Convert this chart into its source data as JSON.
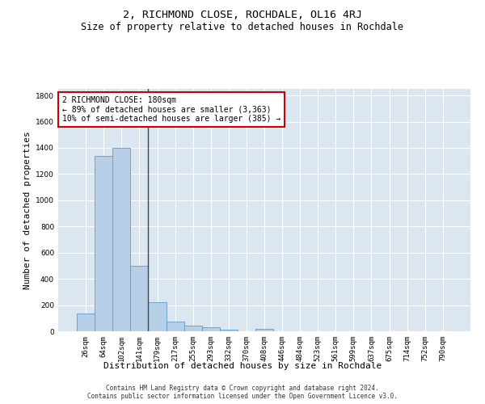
{
  "title": "2, RICHMOND CLOSE, ROCHDALE, OL16 4RJ",
  "subtitle": "Size of property relative to detached houses in Rochdale",
  "xlabel": "Distribution of detached houses by size in Rochdale",
  "ylabel": "Number of detached properties",
  "bar_labels": [
    "26sqm",
    "64sqm",
    "102sqm",
    "141sqm",
    "179sqm",
    "217sqm",
    "255sqm",
    "293sqm",
    "332sqm",
    "370sqm",
    "408sqm",
    "446sqm",
    "484sqm",
    "523sqm",
    "561sqm",
    "599sqm",
    "637sqm",
    "675sqm",
    "714sqm",
    "752sqm",
    "790sqm"
  ],
  "bar_values": [
    135,
    1340,
    1400,
    500,
    225,
    75,
    45,
    28,
    15,
    0,
    20,
    0,
    0,
    0,
    0,
    0,
    0,
    0,
    0,
    0,
    0
  ],
  "bar_color": "#b8cfe8",
  "bar_edge_color": "#5b9bd5",
  "vline_color": "#444444",
  "annotation_text": "2 RICHMOND CLOSE: 180sqm\n← 89% of detached houses are smaller (3,363)\n10% of semi-detached houses are larger (385) →",
  "annotation_box_color": "#ffffff",
  "annotation_box_edge": "#cc0000",
  "ylim": [
    0,
    1850
  ],
  "yticks": [
    0,
    200,
    400,
    600,
    800,
    1000,
    1200,
    1400,
    1600,
    1800
  ],
  "background_color": "#ffffff",
  "plot_bg_color": "#dce6f0",
  "grid_color": "#ffffff",
  "footer_line1": "Contains HM Land Registry data © Crown copyright and database right 2024.",
  "footer_line2": "Contains public sector information licensed under the Open Government Licence v3.0.",
  "title_fontsize": 9.5,
  "subtitle_fontsize": 8.5,
  "tick_fontsize": 6.5,
  "ylabel_fontsize": 8,
  "xlabel_fontsize": 8,
  "annotation_fontsize": 7,
  "footer_fontsize": 5.5
}
